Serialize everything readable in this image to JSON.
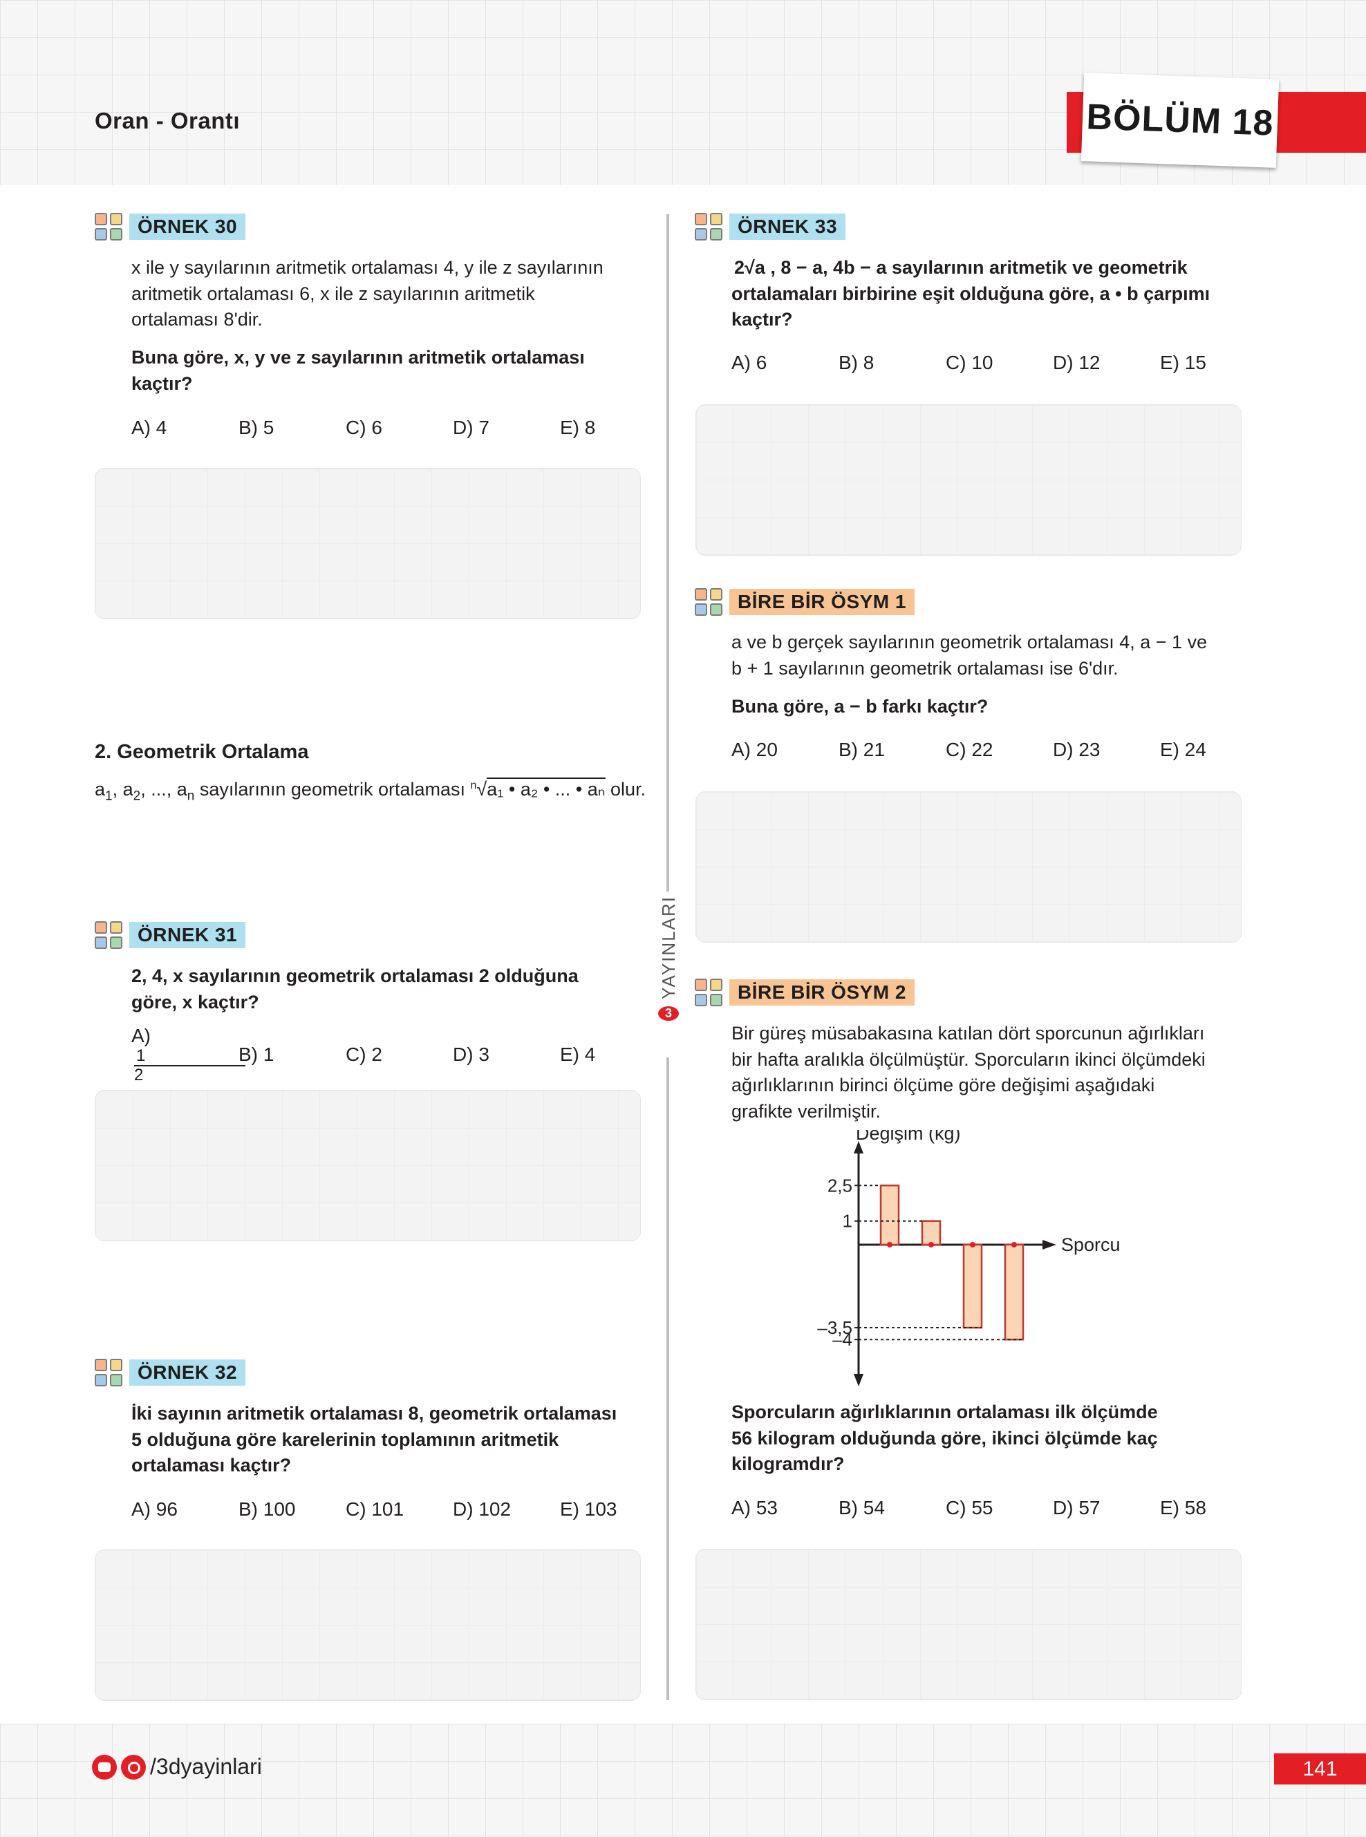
{
  "header": {
    "topic": "Oran - Orantı",
    "chapter": "BÖLÜM 18"
  },
  "side_label": "YAYINLARI",
  "examples": {
    "e30": {
      "tag": "ÖRNEK 30",
      "text1": "x ile y sayılarının aritmetik ortalaması 4, y ile z sayılarının",
      "text2": "aritmetik ortalaması 6, x ile z sayılarının aritmetik",
      "text3": "ortalaması 8'dir.",
      "q1": "Buna göre,  x, y ve z sayılarının aritmetik ortalaması",
      "q2": "kaçtır?",
      "options": [
        "A) 4",
        "B) 5",
        "C) 6",
        "D) 7",
        "E) 8"
      ]
    },
    "e31": {
      "tag": "ÖRNEK 31",
      "q1": "2, 4, x sayılarının geometrik ortalaması 2 olduğuna",
      "q2": "göre, x kaçtır?",
      "opt_a": "A)",
      "opt_a_num": "1",
      "opt_a_den": "2",
      "options": [
        "B) 1",
        "C) 2",
        "D) 3",
        "E) 4"
      ]
    },
    "e32": {
      "tag": "ÖRNEK 32",
      "q1": "İki sayının aritmetik ortalaması 8, geometrik ortalaması",
      "q2": "5 olduğuna göre karelerinin toplamının aritmetik",
      "q3": "ortalaması kaçtır?",
      "options": [
        "A) 96",
        "B) 100",
        "C) 101",
        "D) 102",
        "E) 103"
      ]
    },
    "e33": {
      "tag": "ÖRNEK 33",
      "q1": "2√a , 8 − a, 4b − a sayılarının aritmetik ve geometrik",
      "q2": "ortalamaları birbirine eşit olduğuna göre, a • b çarpımı",
      "q3": "kaçtır?",
      "options": [
        "A) 6",
        "B) 8",
        "C) 10",
        "D) 12",
        "E) 15"
      ]
    },
    "osym1": {
      "tag": "BİRE BİR ÖSYM 1",
      "text1": "a ve b gerçek sayılarının geometrik ortalaması 4, a − 1 ve",
      "text2": "b + 1 sayılarının geometrik ortalaması ise 6'dır.",
      "q1": "Buna göre, a − b farkı kaçtır?",
      "options": [
        "A) 20",
        "B) 21",
        "C) 22",
        "D) 23",
        "E) 24"
      ]
    },
    "osym2": {
      "tag": "BİRE BİR ÖSYM 2",
      "text1": "Bir güreş müsabakasına katılan dört sporcunun ağırlıkları",
      "text2": "bir hafta aralıkla ölçülmüştür. Sporcuların ikinci ölçümdeki",
      "text3": "ağırlıklarının birinci ölçüme göre değişimi aşağıdaki",
      "text4": "grafikte verilmiştir.",
      "q1": "Sporcuların ağırlıklarının ortalaması ilk ölçümde",
      "q2": "56 kilogram olduğunda göre, ikinci ölçümde kaç",
      "q3": "kilogramdır?",
      "options": [
        "A) 53",
        "B) 54",
        "C) 55",
        "D) 57",
        "E) 58"
      ]
    }
  },
  "section2": {
    "title": "2.    Geometrik Ortalama",
    "f_a1": "a",
    "f_s1": "1",
    "f_a2": "a",
    "f_s2": "2",
    "f_mid": ", ..., a",
    "f_sn": "n",
    "f_text": " sayılarının geometrik ortalaması ",
    "f_root_idx": "n",
    "f_root_body": "a₁ • a₂ • ... • aₙ",
    "f_end": " olur."
  },
  "chart_data": {
    "type": "bar",
    "ylabel": "Değişim (kg)",
    "xlabel": "Sporcu",
    "categories": [
      "",
      "",
      "",
      ""
    ],
    "values": [
      2.5,
      1,
      -3.5,
      -4
    ],
    "tick_labels": [
      "2,5",
      "1",
      "–3,5",
      "–4"
    ],
    "ylim": [
      -4.5,
      3.2
    ],
    "bar_color": "#fcd5b5",
    "bar_stroke": "#c0392b",
    "grid": false
  },
  "footer": {
    "social": "/3dyayinlari",
    "page": "141"
  }
}
